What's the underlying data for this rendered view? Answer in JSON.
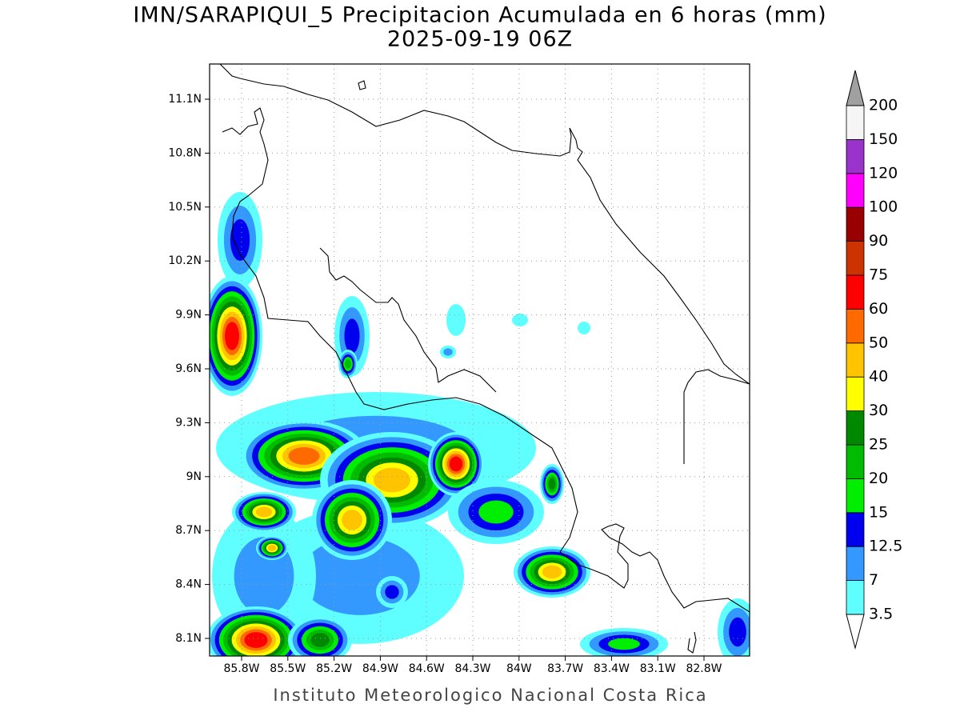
{
  "title": "IMN/SARAPIQUI_5 Precipitacion Acumulada en 6 horas (mm)",
  "subtitle": "2025-09-19 06Z",
  "map": {
    "lat_labels": [
      "11.1N",
      "10.8N",
      "10.5N",
      "10.2N",
      "9.9N",
      "9.6N",
      "9.3N",
      "9N",
      "8.7N",
      "8.4N",
      "8.1N"
    ],
    "lon_labels": [
      "85.8W",
      "85.5W",
      "85.2W",
      "84.9W",
      "84.6W",
      "84.3W",
      "84W",
      "83.7W",
      "83.4W",
      "83.1W",
      "82.8W"
    ]
  },
  "colorbar": {
    "levels": [
      3.5,
      7,
      12.5,
      15,
      20,
      25,
      30,
      40,
      50,
      60,
      75,
      90,
      100,
      120,
      150,
      200
    ],
    "colors": [
      "#5fffff",
      "#3399ff",
      "#0000ee",
      "#00ee00",
      "#00bb00",
      "#008800",
      "#ffff00",
      "#ffc400",
      "#ff6a00",
      "#ff0000",
      "#cc3300",
      "#990000",
      "#ff00ff",
      "#9933cc",
      "#f5f5f5"
    ],
    "under_color": "#ffffff",
    "over_color": "#a0a0a0"
  },
  "footer": "Instituto Meteorologico Nacional Costa Rica"
}
